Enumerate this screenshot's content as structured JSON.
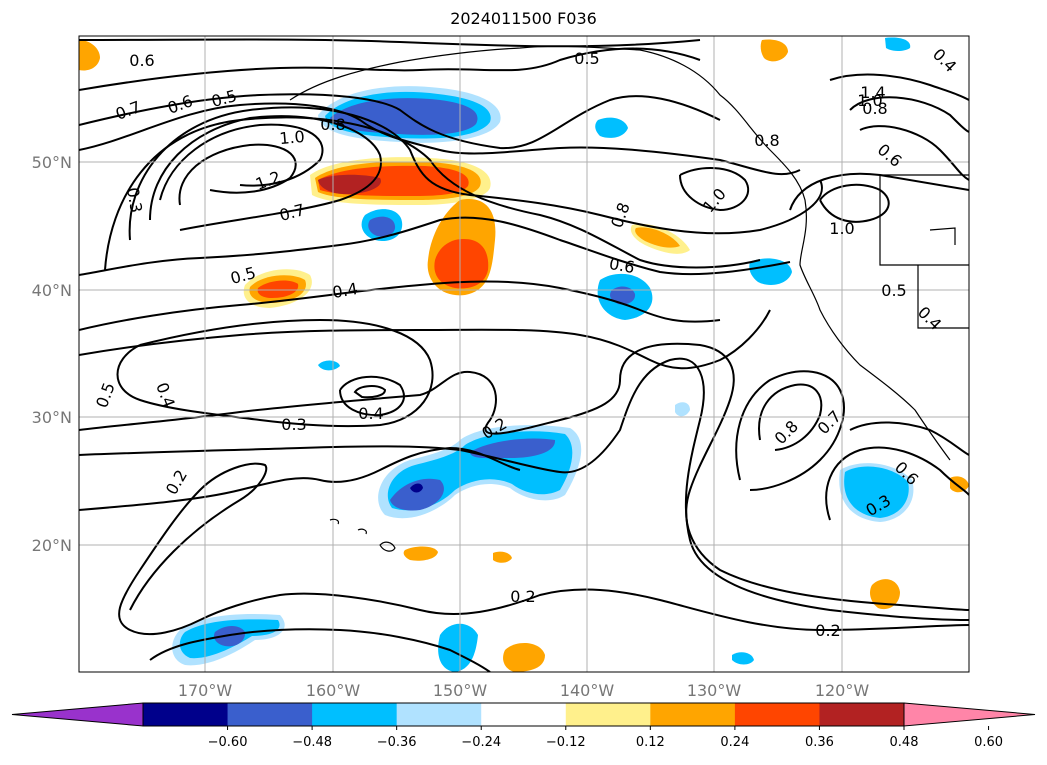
{
  "title": "2024011500 F036",
  "map": {
    "lat_labels": [
      "50°N",
      "40°N",
      "30°N",
      "20°N"
    ],
    "lon_labels": [
      "170°W",
      "160°W",
      "150°W",
      "140°W",
      "130°W",
      "120°W"
    ],
    "contour_labels": [
      "0.6",
      "0.7",
      "0.6",
      "0.5",
      "0.5",
      "1.0",
      "0.8",
      "1.2",
      "0.7",
      "0.3",
      "0.8",
      "1.0",
      "0.8",
      "0.6",
      "0.5",
      "0.4",
      "1.0",
      "1.4",
      "1.0",
      "0.8",
      "0.6",
      "0.5",
      "0.4",
      "0.5",
      "0.4",
      "0.4",
      "0.3",
      "0.2",
      "0.2",
      "0.8",
      "0.7",
      "0.6",
      "0.4",
      "0.3",
      "0.2",
      "0.2"
    ]
  },
  "colorbar": {
    "tick_labels": [
      "−0.60",
      "−0.48",
      "−0.36",
      "−0.24",
      "−0.12",
      "0.12",
      "0.24",
      "0.36",
      "0.48",
      "0.60"
    ],
    "colors": [
      "#9932cc",
      "#00008b",
      "#3a5fcd",
      "#00bfff",
      "#b0e2ff",
      "#ffffff",
      "#fff08c",
      "#ffa500",
      "#ff4500",
      "#b22222",
      "#ff85a8"
    ]
  },
  "palette": {
    "pos_light": "#fff08c",
    "pos_orange": "#ffa500",
    "pos_red": "#ff4500",
    "pos_dark": "#b22222",
    "neg_light": "#b0e2ff",
    "neg_cyan": "#00bfff",
    "neg_blue": "#3a5fcd",
    "neg_navy": "#00008b"
  }
}
